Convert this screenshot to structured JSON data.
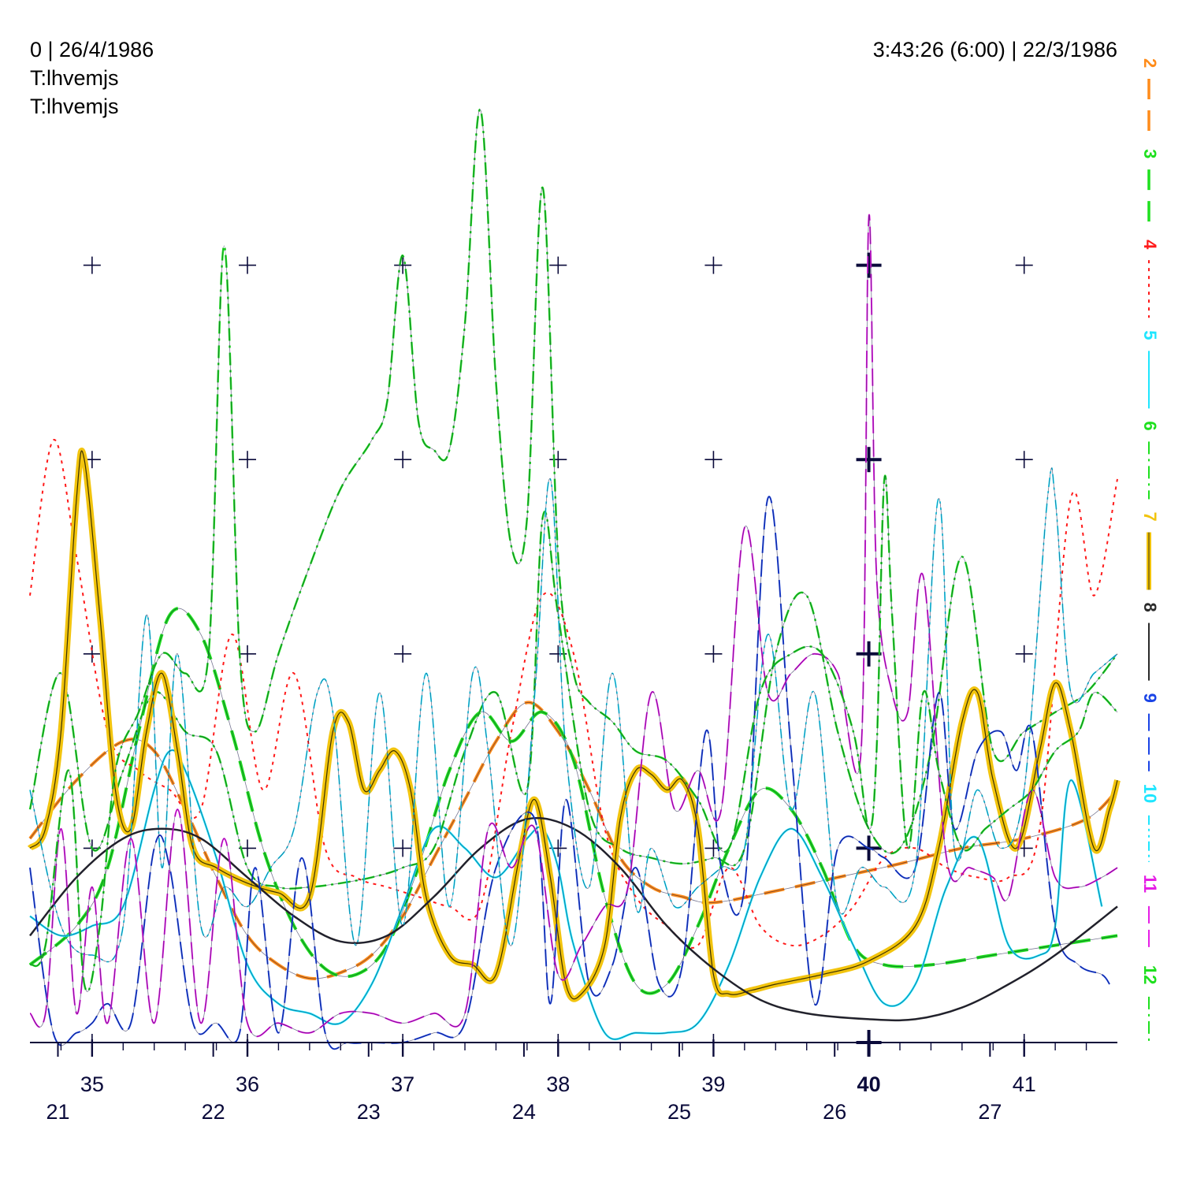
{
  "header": {
    "left_line1": "0 | 26/4/1986",
    "left_line2": "T:lhvemjs",
    "left_line3": "T:lhvemjs",
    "right_line1": "3:43:26 (6:00) | 22/3/1986"
  },
  "chart_data": {
    "type": "line",
    "title": "",
    "xlabel": "",
    "ylabel": "",
    "xlim": [
      34.6,
      41.6
    ],
    "ylim": [
      0,
      5
    ],
    "x_ticks_primary": [
      "35",
      "36",
      "37",
      "38",
      "39",
      "40",
      "41"
    ],
    "x_ticks_primary_values": [
      35,
      36,
      37,
      38,
      39,
      40,
      41
    ],
    "x_tick_highlight": "40",
    "x_ticks_secondary": [
      "21",
      "22",
      "23",
      "24",
      "25",
      "26",
      "27"
    ],
    "x_ticks_secondary_values": [
      34.78,
      35.78,
      36.78,
      37.78,
      38.78,
      39.78,
      40.78
    ],
    "grid": "crosses",
    "legend_position": "right-vertical",
    "series": [
      {
        "name": "2",
        "color": "#ff8c1a",
        "dash": "long",
        "width": 4,
        "x": [
          34.6,
          34.9,
          35.2,
          35.4,
          35.6,
          35.8,
          36.0,
          36.2,
          36.4,
          36.6,
          36.8,
          37.0,
          37.2,
          37.4,
          37.6,
          37.8,
          38.0,
          38.2,
          38.4,
          38.6,
          38.8,
          39.0,
          39.4,
          39.8,
          40.2,
          40.6,
          41.0,
          41.4,
          41.6
        ],
        "y": [
          1.05,
          1.35,
          1.55,
          1.5,
          1.2,
          0.85,
          0.55,
          0.4,
          0.33,
          0.36,
          0.45,
          0.65,
          0.95,
          1.25,
          1.55,
          1.75,
          1.6,
          1.3,
          0.95,
          0.8,
          0.75,
          0.72,
          0.78,
          0.85,
          0.92,
          1.0,
          1.05,
          1.15,
          1.3
        ]
      },
      {
        "name": "3",
        "color": "#1ee01e",
        "dash": "long",
        "width": 4,
        "x": [
          34.6,
          34.9,
          35.1,
          35.3,
          35.5,
          35.7,
          35.9,
          36.1,
          36.3,
          36.5,
          36.7,
          36.9,
          37.1,
          37.3,
          37.5,
          37.7,
          37.9,
          38.1,
          38.3,
          38.5,
          38.7,
          38.9,
          39.1,
          39.3,
          39.5,
          39.7,
          39.9,
          40.1,
          40.4,
          40.8,
          41.2,
          41.6
        ],
        "y": [
          0.4,
          0.6,
          0.9,
          1.6,
          2.2,
          2.1,
          1.6,
          1.0,
          0.6,
          0.38,
          0.35,
          0.5,
          0.9,
          1.4,
          1.7,
          1.55,
          1.7,
          1.45,
          0.75,
          0.3,
          0.3,
          0.6,
          1.0,
          1.3,
          1.2,
          0.9,
          0.5,
          0.4,
          0.4,
          0.45,
          0.5,
          0.55
        ]
      },
      {
        "name": "4",
        "color": "#ff1a1a",
        "dash": "dot",
        "width": 2,
        "x": [
          34.6,
          34.75,
          34.9,
          35.1,
          35.3,
          35.5,
          35.7,
          35.9,
          36.1,
          36.3,
          36.5,
          36.7,
          36.9,
          37.1,
          37.3,
          37.5,
          37.7,
          37.9,
          38.1,
          38.3,
          38.5,
          38.7,
          38.9,
          39.1,
          39.3,
          39.5,
          39.7,
          39.9,
          40.1,
          40.3,
          40.5,
          40.7,
          40.9,
          41.1,
          41.3,
          41.45,
          41.6
        ],
        "y": [
          2.3,
          3.1,
          2.5,
          1.6,
          1.4,
          1.3,
          1.2,
          2.1,
          1.3,
          1.9,
          1.0,
          0.85,
          0.8,
          0.75,
          0.7,
          0.7,
          1.6,
          2.3,
          2.0,
          1.1,
          0.75,
          0.6,
          0.5,
          0.9,
          0.6,
          0.5,
          0.55,
          0.7,
          0.95,
          1.0,
          0.9,
          0.85,
          0.85,
          1.1,
          2.8,
          2.3,
          2.9
        ]
      },
      {
        "name": "5",
        "color": "#1ee6ff",
        "dash": "solid",
        "width": 2.5,
        "x": [
          34.6,
          34.8,
          35.0,
          35.2,
          35.4,
          35.5,
          35.6,
          35.8,
          36.0,
          36.2,
          36.4,
          36.6,
          36.8,
          37.0,
          37.2,
          37.4,
          37.6,
          37.8,
          37.9,
          38.0,
          38.1,
          38.3,
          38.5,
          38.7,
          38.9,
          39.1,
          39.3,
          39.5,
          39.7,
          39.9,
          40.1,
          40.3,
          40.5,
          40.7,
          40.9,
          41.1,
          41.2,
          41.3,
          41.5
        ],
        "y": [
          0.65,
          0.55,
          0.6,
          0.7,
          1.3,
          1.5,
          1.4,
          0.95,
          0.4,
          0.2,
          0.15,
          0.1,
          0.3,
          0.7,
          1.1,
          1.0,
          0.85,
          1.05,
          1.1,
          0.9,
          0.5,
          0.05,
          0.05,
          0.05,
          0.1,
          0.4,
          0.85,
          1.1,
          0.85,
          0.5,
          0.2,
          0.3,
          0.8,
          1.05,
          0.5,
          0.45,
          0.6,
          1.35,
          0.7
        ]
      },
      {
        "name": "6",
        "color": "#1ee01e",
        "dash": "dashdot",
        "width": 2.5,
        "x": [
          34.6,
          34.8,
          35.0,
          35.2,
          35.4,
          35.6,
          35.8,
          36.0,
          36.2,
          36.4,
          36.6,
          36.8,
          37.0,
          37.2,
          37.4,
          37.6,
          37.8,
          37.9,
          38.0,
          38.2,
          38.4,
          38.6,
          38.8,
          39.0,
          39.2,
          39.4,
          39.6,
          39.8,
          40.0,
          40.2,
          40.4,
          40.6,
          40.8,
          41.0,
          41.2,
          41.4,
          41.6
        ],
        "y": [
          1.2,
          1.9,
          1.0,
          1.4,
          1.8,
          1.6,
          1.5,
          0.9,
          0.8,
          0.8,
          0.82,
          0.85,
          0.9,
          1.0,
          1.5,
          1.8,
          1.3,
          2.7,
          2.2,
          1.2,
          1.0,
          0.95,
          0.92,
          0.95,
          1.0,
          2.0,
          2.3,
          1.6,
          1.1,
          1.0,
          1.5,
          2.5,
          1.5,
          1.6,
          1.7,
          1.8,
          2.0
        ]
      },
      {
        "name": "7",
        "color": "#f2c40e",
        "dash": "solid",
        "width": 8,
        "x": [
          34.6,
          34.7,
          34.8,
          34.9,
          34.95,
          35.05,
          35.15,
          35.25,
          35.35,
          35.45,
          35.55,
          35.65,
          35.8,
          36.0,
          36.2,
          36.4,
          36.55,
          36.65,
          36.75,
          36.85,
          36.95,
          37.05,
          37.15,
          37.3,
          37.45,
          37.6,
          37.75,
          37.85,
          37.95,
          38.05,
          38.15,
          38.3,
          38.4,
          38.5,
          38.6,
          38.7,
          38.8,
          38.9,
          39.0,
          39.1,
          39.25,
          39.4,
          39.7,
          40.0,
          40.3,
          40.45,
          40.6,
          40.7,
          40.8,
          40.95,
          41.1,
          41.2,
          41.3,
          41.45,
          41.55,
          41.6
        ],
        "y": [
          1.0,
          1.1,
          1.6,
          2.8,
          3.0,
          2.2,
          1.3,
          1.1,
          1.6,
          1.9,
          1.5,
          1.0,
          0.9,
          0.82,
          0.77,
          0.75,
          1.6,
          1.65,
          1.3,
          1.4,
          1.5,
          1.3,
          0.75,
          0.45,
          0.4,
          0.35,
          0.95,
          1.25,
          0.85,
          0.3,
          0.25,
          0.5,
          1.15,
          1.4,
          1.38,
          1.3,
          1.35,
          1.1,
          0.35,
          0.25,
          0.27,
          0.3,
          0.35,
          0.42,
          0.6,
          1.0,
          1.65,
          1.8,
          1.35,
          1.0,
          1.5,
          1.85,
          1.6,
          1.0,
          1.2,
          1.35
        ]
      },
      {
        "name": "8",
        "color": "#2a2a2a",
        "dash": "solid",
        "width": 2.5,
        "x": [
          34.6,
          34.9,
          35.2,
          35.45,
          35.7,
          36.0,
          36.3,
          36.6,
          36.9,
          37.2,
          37.5,
          37.8,
          38.1,
          38.4,
          38.7,
          39.0,
          39.3,
          39.6,
          40.0,
          40.3,
          40.6,
          40.9,
          41.2,
          41.6
        ],
        "y": [
          0.55,
          0.85,
          1.05,
          1.1,
          1.05,
          0.85,
          0.65,
          0.52,
          0.55,
          0.75,
          1.0,
          1.15,
          1.1,
          0.9,
          0.6,
          0.38,
          0.22,
          0.15,
          0.12,
          0.12,
          0.18,
          0.3,
          0.45,
          0.7
        ]
      },
      {
        "name": "9",
        "color": "#1a44e6",
        "dash": "longdash",
        "width": 2,
        "x": [
          34.6,
          34.75,
          34.9,
          35.0,
          35.1,
          35.25,
          35.4,
          35.5,
          35.65,
          35.8,
          35.95,
          36.05,
          36.2,
          36.35,
          36.5,
          36.65,
          36.8,
          37.0,
          37.2,
          37.4,
          37.6,
          37.85,
          37.95,
          38.05,
          38.2,
          38.35,
          38.5,
          38.65,
          38.8,
          38.95,
          39.05,
          39.2,
          39.35,
          39.5,
          39.65,
          39.8,
          40.0,
          40.1,
          40.3,
          40.45,
          40.55,
          40.7,
          40.85,
          40.95,
          41.05,
          41.2,
          41.35,
          41.5,
          41.55
        ],
        "y": [
          0.9,
          0.05,
          0.05,
          0.1,
          0.2,
          0.1,
          1.0,
          0.9,
          0.1,
          0.1,
          0.05,
          0.9,
          0.05,
          0.95,
          0.05,
          0.0,
          0.0,
          0.0,
          0.05,
          0.1,
          0.9,
          1.15,
          0.2,
          1.25,
          0.3,
          0.4,
          0.9,
          0.3,
          0.4,
          1.6,
          0.9,
          0.8,
          2.8,
          1.5,
          0.2,
          1.0,
          1.0,
          0.95,
          0.9,
          1.8,
          1.1,
          1.5,
          1.6,
          1.4,
          1.6,
          0.6,
          0.4,
          0.35,
          0.3
        ]
      },
      {
        "name": "10",
        "color": "#1ee6ff",
        "dash": "dashdotdot",
        "width": 1.8,
        "x": [
          34.6,
          34.8,
          35.0,
          35.2,
          35.35,
          35.45,
          35.55,
          35.7,
          35.85,
          36.0,
          36.15,
          36.3,
          36.45,
          36.55,
          36.7,
          36.85,
          37.0,
          37.15,
          37.3,
          37.45,
          37.55,
          37.7,
          37.85,
          37.95,
          38.05,
          38.2,
          38.35,
          38.5,
          38.6,
          38.75,
          38.9,
          39.05,
          39.2,
          39.35,
          39.5,
          39.65,
          39.8,
          39.95,
          40.1,
          40.3,
          40.45,
          40.55,
          40.7,
          40.85,
          41.0,
          41.15,
          41.2,
          41.3,
          41.45,
          41.6
        ],
        "y": [
          1.3,
          0.6,
          0.45,
          0.6,
          2.2,
          0.9,
          2.0,
          0.6,
          0.8,
          0.7,
          0.9,
          1.1,
          1.8,
          1.7,
          0.5,
          1.8,
          0.6,
          1.9,
          0.7,
          1.9,
          1.5,
          0.5,
          1.8,
          2.9,
          1.5,
          0.8,
          1.9,
          0.7,
          1.0,
          0.7,
          0.8,
          0.9,
          1.0,
          2.1,
          1.2,
          1.8,
          0.7,
          0.9,
          0.8,
          0.9,
          2.8,
          1.0,
          1.3,
          1.0,
          1.3,
          2.8,
          2.8,
          1.8,
          1.9,
          2.0
        ]
      },
      {
        "name": "11",
        "color": "#e61ee6",
        "dash": "longdash",
        "width": 2,
        "x": [
          34.6,
          34.7,
          34.8,
          34.9,
          35.0,
          35.1,
          35.25,
          35.4,
          35.55,
          35.7,
          35.85,
          36.0,
          36.2,
          36.4,
          36.6,
          36.8,
          37.0,
          37.2,
          37.4,
          37.55,
          37.7,
          37.85,
          38.0,
          38.15,
          38.3,
          38.45,
          38.6,
          38.75,
          38.9,
          39.05,
          39.2,
          39.35,
          39.5,
          39.65,
          39.8,
          39.95,
          40.0,
          40.05,
          40.15,
          40.25,
          40.35,
          40.5,
          40.65,
          40.8,
          40.9,
          41.05,
          41.2,
          41.35,
          41.5,
          41.6
        ],
        "y": [
          0.15,
          0.15,
          1.1,
          0.15,
          0.8,
          0.1,
          1.05,
          0.1,
          1.2,
          0.1,
          1.05,
          0.1,
          0.1,
          0.05,
          0.15,
          0.15,
          0.1,
          0.15,
          0.15,
          1.1,
          0.9,
          1.1,
          0.35,
          0.5,
          0.7,
          0.8,
          1.8,
          1.2,
          1.4,
          1.2,
          2.65,
          1.8,
          1.9,
          2.0,
          1.9,
          1.5,
          4.25,
          2.4,
          1.8,
          1.7,
          2.4,
          0.95,
          0.9,
          0.85,
          0.75,
          1.3,
          0.85,
          0.8,
          0.85,
          0.9
        ]
      },
      {
        "name": "12",
        "color": "#1ee01e",
        "dash": "dashdot",
        "width": 2.5,
        "x": [
          34.6,
          34.7,
          34.85,
          34.95,
          35.05,
          35.15,
          35.3,
          35.45,
          35.6,
          35.75,
          35.85,
          35.95,
          36.05,
          36.2,
          36.4,
          36.6,
          36.8,
          36.9,
          37.0,
          37.1,
          37.2,
          37.3,
          37.4,
          37.5,
          37.6,
          37.7,
          37.8,
          37.9,
          38.0,
          38.1,
          38.2,
          38.35,
          38.5,
          38.7,
          38.9,
          39.1,
          39.3,
          39.5,
          39.7,
          39.9,
          40.0,
          40.05,
          40.1,
          40.15,
          40.25,
          40.35,
          40.45,
          40.6,
          40.75,
          40.9,
          41.05,
          41.2,
          41.35,
          41.45,
          41.6
        ],
        "y": [
          0.4,
          0.5,
          1.4,
          0.3,
          0.6,
          1.4,
          1.7,
          2.0,
          1.9,
          2.0,
          4.1,
          2.0,
          1.6,
          2.0,
          2.45,
          2.85,
          3.1,
          3.3,
          4.05,
          3.2,
          3.05,
          3.05,
          3.7,
          4.8,
          3.4,
          2.55,
          2.7,
          4.4,
          2.5,
          1.9,
          1.75,
          1.65,
          1.5,
          1.45,
          1.25,
          1.0,
          1.8,
          2.0,
          2.0,
          1.6,
          1.1,
          1.5,
          2.9,
          2.2,
          1.0,
          1.8,
          1.4,
          1.0,
          1.1,
          1.2,
          1.3,
          1.5,
          1.6,
          1.8,
          1.7
        ]
      }
    ]
  }
}
